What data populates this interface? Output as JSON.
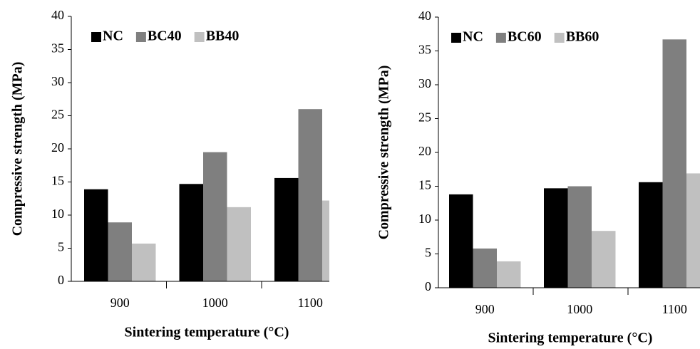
{
  "chart_data": [
    {
      "type": "bar",
      "x_label": "Sintering temperature (°C)",
      "y_label": "Compressive strength (MPa)",
      "categories": [
        "900",
        "1000",
        "1100"
      ],
      "series": [
        {
          "name": "NC",
          "color": "#000000",
          "values": [
            13.9,
            14.7,
            15.6
          ]
        },
        {
          "name": "BC40",
          "color": "#7f7f7f",
          "values": [
            8.9,
            19.5,
            26.0
          ]
        },
        {
          "name": "BB40",
          "color": "#c0c0c0",
          "values": [
            5.7,
            11.2,
            12.2
          ]
        }
      ],
      "ylim": [
        0,
        40
      ],
      "yticks": [
        0,
        5,
        10,
        15,
        20,
        25,
        30,
        35,
        40
      ],
      "grid": false,
      "legend": "top-left"
    },
    {
      "type": "bar",
      "x_label": "Sintering temperature (°C)",
      "y_label": "Compressive strength (MPa)",
      "categories": [
        "900",
        "1000",
        "1100"
      ],
      "series": [
        {
          "name": "NC",
          "color": "#000000",
          "values": [
            13.8,
            14.7,
            15.6
          ]
        },
        {
          "name": "BC60",
          "color": "#7f7f7f",
          "values": [
            5.8,
            15.0,
            36.7
          ]
        },
        {
          "name": "BB60",
          "color": "#c0c0c0",
          "values": [
            3.9,
            8.4,
            16.9
          ]
        }
      ],
      "ylim": [
        0,
        40
      ],
      "yticks": [
        0,
        5,
        10,
        15,
        20,
        25,
        30,
        35,
        40
      ],
      "grid": false,
      "legend": "top-left"
    }
  ]
}
